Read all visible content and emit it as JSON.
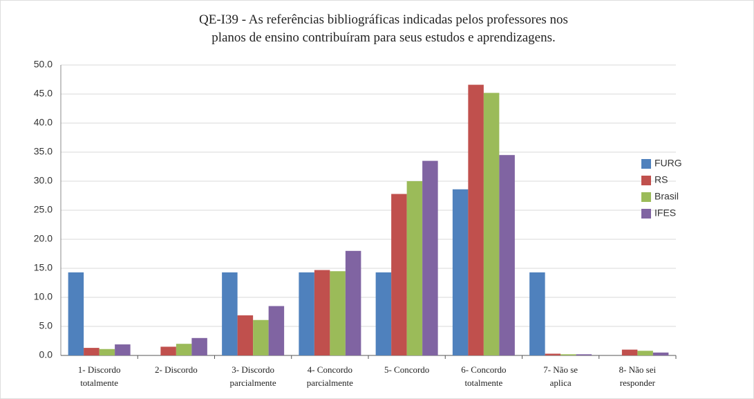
{
  "chart_data": {
    "type": "bar",
    "title": "QE-I39 - As referências bibliográficas indicadas pelos professores nos\nplanos de ensino contribuíram para seus estudos e aprendizagens.",
    "categories": [
      "1- Discordo\ntotalmente",
      "2- Discordo",
      "3- Discordo\nparcialmente",
      "4- Concordo\nparcialmente",
      "5- Concordo",
      "6- Concordo\ntotalmente",
      "7- Não se\naplica",
      "8- Não sei\nresponder"
    ],
    "series": [
      {
        "name": "FURG",
        "color": "#4f81bd",
        "values": [
          14.3,
          0,
          14.3,
          14.3,
          14.3,
          28.6,
          14.3,
          0
        ]
      },
      {
        "name": "RS",
        "color": "#c0504d",
        "values": [
          1.3,
          1.5,
          6.9,
          14.7,
          27.8,
          46.6,
          0.3,
          1.0
        ]
      },
      {
        "name": "Brasil",
        "color": "#9bbb59",
        "values": [
          1.1,
          2.0,
          6.1,
          14.5,
          30.0,
          45.2,
          0.2,
          0.8
        ]
      },
      {
        "name": "IFES",
        "color": "#8064a2",
        "values": [
          1.9,
          3.0,
          8.5,
          18.0,
          33.5,
          34.5,
          0.2,
          0.5
        ]
      }
    ],
    "ylim": [
      0,
      50
    ],
    "yticks": [
      {
        "value": 0,
        "label": "0.0"
      },
      {
        "value": 5,
        "label": "5.0"
      },
      {
        "value": 10,
        "label": "10.0"
      },
      {
        "value": 15,
        "label": "15.0"
      },
      {
        "value": 20,
        "label": "20.0"
      },
      {
        "value": 25,
        "label": "25.0"
      },
      {
        "value": 30,
        "label": "30.0"
      },
      {
        "value": 35,
        "label": "35.0"
      },
      {
        "value": 40,
        "label": "40.0"
      },
      {
        "value": 45,
        "label": "45.0"
      },
      {
        "value": 50,
        "label": "50.0"
      }
    ],
    "grid": true,
    "legend": "right"
  }
}
